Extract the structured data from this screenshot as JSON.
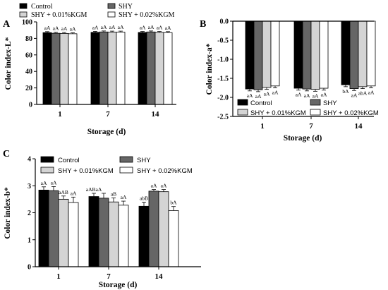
{
  "colors": {
    "series": [
      "#000000",
      "#666666",
      "#d4d4d4",
      "#ffffff"
    ],
    "axis": "#000000"
  },
  "chart_data": [
    {
      "panel": "A",
      "type": "bar",
      "ylabel": "Color index-L*",
      "xlabel": "Storage (d)",
      "categories": [
        "1",
        "7",
        "14"
      ],
      "ylim": [
        0,
        100
      ],
      "yticks": [
        0,
        20,
        40,
        60,
        80,
        100
      ],
      "ytick_labels": [
        "0",
        "20",
        "40",
        "60",
        "80",
        "100"
      ],
      "legend": {
        "placement": "top",
        "entries": [
          "Control",
          "SHY",
          "SHY + 0.01%KGM",
          "SHY + 0.02%KGM"
        ]
      },
      "series": [
        {
          "name": "Control",
          "values": [
            87.0,
            87.3,
            87.2
          ],
          "errors": [
            1.2,
            1.2,
            1.2
          ],
          "labels": [
            "aA",
            "aA",
            "aA"
          ]
        },
        {
          "name": "SHY",
          "values": [
            86.2,
            87.8,
            87.8
          ],
          "errors": [
            1.2,
            1.2,
            1.2
          ],
          "labels": [
            "aA",
            "aA",
            "aA"
          ]
        },
        {
          "name": "SHY + 0.01%KGM",
          "values": [
            86.0,
            87.6,
            87.2
          ],
          "errors": [
            1.2,
            1.2,
            1.2
          ],
          "labels": [
            "aA",
            "aA",
            "aA"
          ]
        },
        {
          "name": "SHY + 0.02%KGM",
          "values": [
            85.6,
            87.6,
            87.0
          ],
          "errors": [
            1.2,
            1.2,
            1.2
          ],
          "labels": [
            "aA",
            "aA",
            "aA"
          ]
        }
      ]
    },
    {
      "panel": "B",
      "type": "bar",
      "ylabel": "Color index-a*",
      "xlabel": "Storage (d)",
      "categories": [
        "1",
        "7",
        "14"
      ],
      "ylim": [
        -2.5,
        0
      ],
      "yticks": [
        0,
        -0.5,
        -1.0,
        -1.5,
        -2.0,
        -2.5
      ],
      "ytick_labels": [
        "0.0",
        "-0.5",
        "-1.0",
        "-1.5",
        "-2.0",
        "-2.5"
      ],
      "legend": {
        "placement": "lower",
        "entries": [
          "Control",
          "SHY",
          "SHY + 0.01%KGM",
          "SHY + 0.02%KGM"
        ]
      },
      "series": [
        {
          "name": "Control",
          "values": [
            -1.78,
            -1.76,
            -1.67
          ],
          "errors": [
            0.05,
            0.05,
            0.05
          ],
          "labels": [
            "aA",
            "aA",
            "bA"
          ]
        },
        {
          "name": "SHY",
          "values": [
            -1.8,
            -1.78,
            -1.77
          ],
          "errors": [
            0.05,
            0.05,
            0.05
          ],
          "labels": [
            "aA",
            "aA",
            "aA"
          ]
        },
        {
          "name": "SHY + 0.01%KGM",
          "values": [
            -1.74,
            -1.79,
            -1.72
          ],
          "errors": [
            0.05,
            0.05,
            0.05
          ],
          "labels": [
            "aA",
            "aA",
            "abA"
          ]
        },
        {
          "name": "SHY + 0.02%KGM",
          "values": [
            -1.7,
            -1.76,
            -1.7
          ],
          "errors": [
            0.05,
            0.05,
            0.05
          ],
          "labels": [
            "aA",
            "aA",
            "aA"
          ]
        }
      ]
    },
    {
      "panel": "C",
      "type": "bar",
      "ylabel": "Color index-b*",
      "xlabel": "Storage (d)",
      "categories": [
        "1",
        "7",
        "14"
      ],
      "ylim": [
        0,
        4
      ],
      "yticks": [
        0,
        1,
        2,
        3,
        4
      ],
      "ytick_labels": [
        "0",
        "1",
        "2",
        "3",
        "4"
      ],
      "legend": {
        "placement": "top",
        "entries": [
          "Control",
          "SHY",
          "SHY + 0.01%KGM",
          "SHY + 0.02%KGM"
        ]
      },
      "series": [
        {
          "name": "Control",
          "values": [
            2.84,
            2.6,
            2.24
          ],
          "errors": [
            0.12,
            0.12,
            0.15
          ],
          "labels": [
            "aA",
            "aABaA",
            "abB"
          ]
        },
        {
          "name": "SHY",
          "values": [
            2.82,
            2.54,
            2.8
          ],
          "errors": [
            0.15,
            0.18,
            0.06
          ],
          "labels": [
            "aA",
            "",
            "aA"
          ]
        },
        {
          "name": "SHY + 0.01%KGM",
          "values": [
            2.5,
            2.4,
            2.78
          ],
          "errors": [
            0.12,
            0.15,
            0.08
          ],
          "labels": [
            "aAB",
            "aB",
            "aA"
          ]
        },
        {
          "name": "SHY + 0.02%KGM",
          "values": [
            2.38,
            2.28,
            2.08
          ],
          "errors": [
            0.2,
            0.15,
            0.15
          ],
          "labels": [
            "aA",
            "aA",
            "bA"
          ]
        }
      ]
    }
  ]
}
